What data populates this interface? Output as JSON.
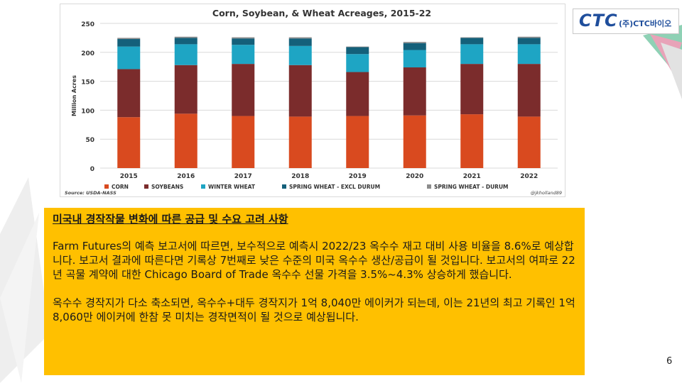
{
  "logo": {
    "mark": "CTC",
    "text": "(주)CTC바이오"
  },
  "chart_data": {
    "type": "bar",
    "stacked": true,
    "title": "Corn, Soybean, & Wheat Acreages, 2015-22",
    "ylabel": "Million Acres",
    "xlabel": "",
    "ylim": [
      0,
      250
    ],
    "yticks": [
      0,
      50,
      100,
      150,
      200,
      250
    ],
    "grid": true,
    "legend_position": "bottom",
    "categories": [
      "2015",
      "2016",
      "2017",
      "2018",
      "2019",
      "2020",
      "2021",
      "2022"
    ],
    "series": [
      {
        "name": "CORN",
        "color": "#d94a1f",
        "values": [
          88,
          94,
          90,
          89,
          90,
          91,
          93,
          89
        ]
      },
      {
        "name": "SOYBEANS",
        "color": "#7b2c2c",
        "values": [
          83,
          84,
          90,
          89,
          76,
          83,
          87,
          91
        ]
      },
      {
        "name": "WINTER WHEAT",
        "color": "#1ea5c4",
        "values": [
          39,
          36,
          33,
          33,
          31,
          30,
          34,
          34
        ]
      },
      {
        "name": "SPRING WHEAT - EXCL DURUM",
        "color": "#14607a",
        "values": [
          13,
          11,
          11,
          13,
          12,
          12,
          11,
          11
        ]
      },
      {
        "name": "SPRING WHEAT - DURUM",
        "color": "#8c8c8c",
        "values": [
          2,
          2,
          2,
          2,
          1,
          2,
          1,
          2
        ]
      }
    ],
    "source": "Source: USDA-NASS",
    "credit": "@jkholland89"
  },
  "textbox": {
    "title": "미국내 경작작물 변화에 따른 공급 및 수요 고려 사항",
    "paragraph1": "Farm Futures의 예측 보고서에 따르면, 보수적으로 예측시 2022/23 옥수수 재고 대비 사용 비율을 8.6%로 예상합니다. 보고서 결과에 따른다면 기록상 7번째로 낮은 수준의 미국 옥수수 생산/공급이 될 것입니다. 보고서의 여파로 22년 곡물 계약에 대한 Chicago Board of Trade 옥수수 선물 가격을 3.5%~4.3% 상승하게 했습니다.",
    "paragraph2": "옥수수 경작지가 다소 축소되면, 옥수수+대두 경작지가 1억 8,040만 에이커가 되는데, 이는 21년의 최고 기록인 1억 8,060만 에이커에 한참 못 미치는 경작면적이 될 것으로 예상됩니다."
  },
  "page_number": "6"
}
